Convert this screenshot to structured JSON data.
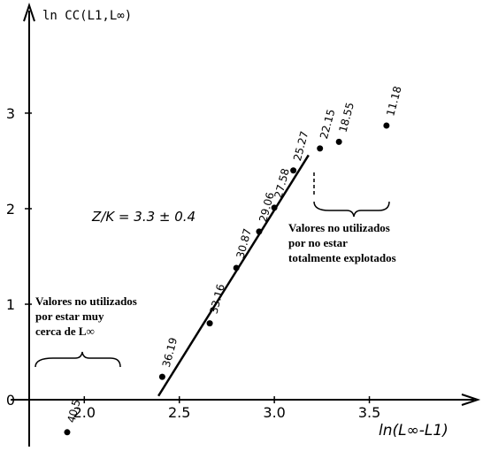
{
  "chart_data": {
    "type": "scatter",
    "title": "ln CC(L1,L∞)",
    "x_label": "ln(L∞-L1)",
    "xlim": [
      1.71,
      4.07
    ],
    "ylim": [
      -0.49,
      4.11
    ],
    "xticks": [
      {
        "value": 2,
        "label": "2.0"
      },
      {
        "value": 2.5,
        "label": "2.5"
      },
      {
        "value": 3,
        "label": "3.0"
      },
      {
        "value": 3.5,
        "label": "3.5"
      }
    ],
    "yticks": [
      0,
      1,
      2,
      3
    ],
    "color": "#000000",
    "series": [
      {
        "x": [
          1.91,
          2.41,
          2.66,
          2.8,
          2.92,
          3.0,
          3.1,
          3.24,
          3.34,
          3.59
        ],
        "values": [
          -0.34,
          0.24,
          0.8,
          1.38,
          1.76,
          2.01,
          2.4,
          2.63,
          2.7,
          2.87
        ],
        "point_labels": [
          "40.5",
          "36.19",
          "33.16",
          "30.87",
          "29.06",
          "27.58",
          "25.27",
          "22.15",
          "18.55",
          "11.18"
        ]
      }
    ],
    "fit_line": {
      "x": [
        2.39,
        3.18
      ],
      "values": [
        0.04,
        2.56
      ]
    },
    "annotations": [
      {
        "text": "Z/K = 3.3 ± 0.4"
      },
      {
        "lines": [
          "Valores no utilizados",
          "por estar muy",
          "cerca de  L∞"
        ]
      },
      {
        "lines": [
          "Valores no utilizados",
          "por no estar",
          "totalmente explotados"
        ]
      }
    ]
  }
}
